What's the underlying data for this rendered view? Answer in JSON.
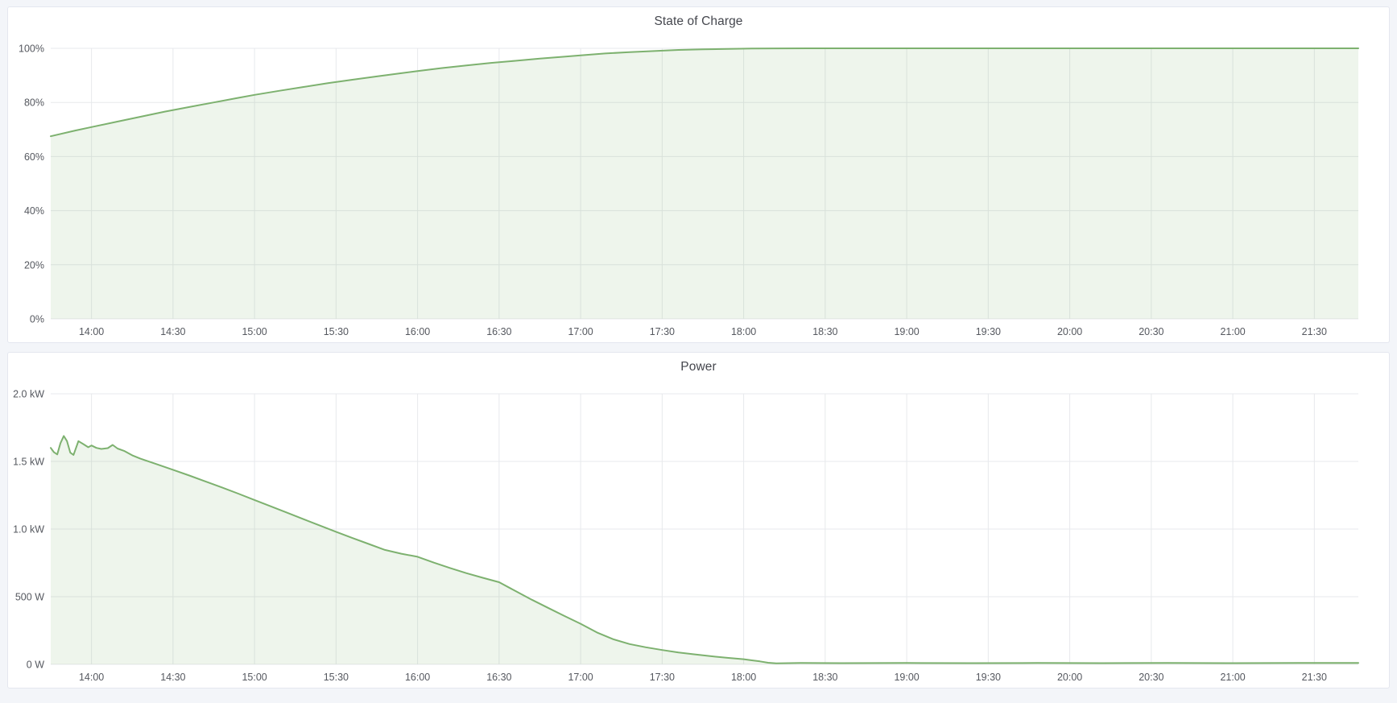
{
  "page": {
    "background_color": "#f3f5f9",
    "panel_background": "#ffffff",
    "panel_border_color": "#e4e7ef",
    "title_color": "#45474e",
    "axis_label_color": "#55585f",
    "gridline_color": "#e7e9ec"
  },
  "chart_data": [
    {
      "type": "area",
      "title": "State of Charge",
      "xlabel": "",
      "ylabel": "",
      "legend": "none",
      "grid": "on",
      "line_color": "#7db16f",
      "fill_color": "#7db16f",
      "fill_opacity": 0.13,
      "xlim": [
        13.75,
        21.77
      ],
      "ylim": [
        0,
        100
      ],
      "x_ticks": [
        {
          "t": 14.0,
          "label": "14:00"
        },
        {
          "t": 14.5,
          "label": "14:30"
        },
        {
          "t": 15.0,
          "label": "15:00"
        },
        {
          "t": 15.5,
          "label": "15:30"
        },
        {
          "t": 16.0,
          "label": "16:00"
        },
        {
          "t": 16.5,
          "label": "16:30"
        },
        {
          "t": 17.0,
          "label": "17:00"
        },
        {
          "t": 17.5,
          "label": "17:30"
        },
        {
          "t": 18.0,
          "label": "18:00"
        },
        {
          "t": 18.5,
          "label": "18:30"
        },
        {
          "t": 19.0,
          "label": "19:00"
        },
        {
          "t": 19.5,
          "label": "19:30"
        },
        {
          "t": 20.0,
          "label": "20:00"
        },
        {
          "t": 20.5,
          "label": "20:30"
        },
        {
          "t": 21.0,
          "label": "21:00"
        },
        {
          "t": 21.5,
          "label": "21:30"
        }
      ],
      "y_ticks": [
        {
          "v": 0,
          "label": "0%"
        },
        {
          "v": 20,
          "label": "20%"
        },
        {
          "v": 40,
          "label": "40%"
        },
        {
          "v": 60,
          "label": "60%"
        },
        {
          "v": 80,
          "label": "80%"
        },
        {
          "v": 100,
          "label": "100%"
        }
      ],
      "points": [
        [
          13.75,
          67.5
        ],
        [
          13.9,
          69.6
        ],
        [
          14.0,
          70.9
        ],
        [
          14.15,
          72.8
        ],
        [
          14.3,
          74.7
        ],
        [
          14.45,
          76.6
        ],
        [
          14.6,
          78.3
        ],
        [
          14.75,
          80.0
        ],
        [
          14.9,
          81.7
        ],
        [
          15.0,
          82.8
        ],
        [
          15.15,
          84.3
        ],
        [
          15.3,
          85.7
        ],
        [
          15.45,
          87.1
        ],
        [
          15.6,
          88.4
        ],
        [
          15.75,
          89.6
        ],
        [
          15.9,
          90.8
        ],
        [
          16.0,
          91.6
        ],
        [
          16.15,
          92.7
        ],
        [
          16.3,
          93.7
        ],
        [
          16.45,
          94.6
        ],
        [
          16.6,
          95.4
        ],
        [
          16.75,
          96.2
        ],
        [
          16.9,
          96.9
        ],
        [
          17.0,
          97.4
        ],
        [
          17.15,
          98.1
        ],
        [
          17.3,
          98.6
        ],
        [
          17.45,
          99.0
        ],
        [
          17.6,
          99.4
        ],
        [
          17.75,
          99.6
        ],
        [
          17.9,
          99.8
        ],
        [
          18.05,
          99.9
        ],
        [
          18.2,
          99.97
        ],
        [
          18.4,
          100
        ],
        [
          19.0,
          100
        ],
        [
          20.0,
          100
        ],
        [
          21.0,
          100
        ],
        [
          21.77,
          100
        ]
      ]
    },
    {
      "type": "area",
      "title": "Power",
      "xlabel": "",
      "ylabel": "",
      "legend": "none",
      "grid": "on",
      "line_color": "#7db16f",
      "fill_color": "#7db16f",
      "fill_opacity": 0.13,
      "xlim": [
        13.75,
        21.77
      ],
      "ylim": [
        0,
        2000
      ],
      "x_ticks": [
        {
          "t": 14.0,
          "label": "14:00"
        },
        {
          "t": 14.5,
          "label": "14:30"
        },
        {
          "t": 15.0,
          "label": "15:00"
        },
        {
          "t": 15.5,
          "label": "15:30"
        },
        {
          "t": 16.0,
          "label": "16:00"
        },
        {
          "t": 16.5,
          "label": "16:30"
        },
        {
          "t": 17.0,
          "label": "17:00"
        },
        {
          "t": 17.5,
          "label": "17:30"
        },
        {
          "t": 18.0,
          "label": "18:00"
        },
        {
          "t": 18.5,
          "label": "18:30"
        },
        {
          "t": 19.0,
          "label": "19:00"
        },
        {
          "t": 19.5,
          "label": "19:30"
        },
        {
          "t": 20.0,
          "label": "20:00"
        },
        {
          "t": 20.5,
          "label": "20:30"
        },
        {
          "t": 21.0,
          "label": "21:00"
        },
        {
          "t": 21.5,
          "label": "21:30"
        }
      ],
      "y_ticks": [
        {
          "v": 0,
          "label": "0 W"
        },
        {
          "v": 500,
          "label": "500 W"
        },
        {
          "v": 1000,
          "label": "1.0 kW"
        },
        {
          "v": 1500,
          "label": "1.5 kW"
        },
        {
          "v": 2000,
          "label": "2.0 kW"
        }
      ],
      "points": [
        [
          13.75,
          1600
        ],
        [
          13.77,
          1568
        ],
        [
          13.79,
          1552
        ],
        [
          13.81,
          1635
        ],
        [
          13.83,
          1688
        ],
        [
          13.85,
          1650
        ],
        [
          13.87,
          1565
        ],
        [
          13.89,
          1548
        ],
        [
          13.92,
          1650
        ],
        [
          13.95,
          1628
        ],
        [
          13.98,
          1605
        ],
        [
          14.0,
          1618
        ],
        [
          14.03,
          1600
        ],
        [
          14.06,
          1592
        ],
        [
          14.1,
          1598
        ],
        [
          14.13,
          1622
        ],
        [
          14.16,
          1595
        ],
        [
          14.2,
          1578
        ],
        [
          14.25,
          1545
        ],
        [
          14.3,
          1520
        ],
        [
          14.4,
          1480
        ],
        [
          14.5,
          1438
        ],
        [
          14.6,
          1396
        ],
        [
          14.7,
          1352
        ],
        [
          14.8,
          1308
        ],
        [
          14.9,
          1262
        ],
        [
          15.0,
          1215
        ],
        [
          15.1,
          1168
        ],
        [
          15.2,
          1121
        ],
        [
          15.3,
          1073
        ],
        [
          15.4,
          1026
        ],
        [
          15.5,
          980
        ],
        [
          15.6,
          934
        ],
        [
          15.7,
          890
        ],
        [
          15.8,
          846
        ],
        [
          15.9,
          818
        ],
        [
          16.0,
          795
        ],
        [
          16.1,
          752
        ],
        [
          16.2,
          712
        ],
        [
          16.3,
          674
        ],
        [
          16.4,
          640
        ],
        [
          16.5,
          607
        ],
        [
          16.6,
          542
        ],
        [
          16.7,
          478
        ],
        [
          16.8,
          418
        ],
        [
          16.9,
          358
        ],
        [
          17.0,
          300
        ],
        [
          17.1,
          236
        ],
        [
          17.2,
          186
        ],
        [
          17.3,
          150
        ],
        [
          17.4,
          126
        ],
        [
          17.5,
          106
        ],
        [
          17.6,
          88
        ],
        [
          17.7,
          74
        ],
        [
          17.8,
          60
        ],
        [
          17.9,
          48
        ],
        [
          18.0,
          38
        ],
        [
          18.05,
          30
        ],
        [
          18.1,
          22
        ],
        [
          18.15,
          12
        ],
        [
          18.2,
          8
        ],
        [
          18.35,
          10
        ],
        [
          18.6,
          9
        ],
        [
          19.0,
          10
        ],
        [
          19.4,
          9
        ],
        [
          19.8,
          10
        ],
        [
          20.2,
          9
        ],
        [
          20.6,
          10
        ],
        [
          21.0,
          9
        ],
        [
          21.4,
          10
        ],
        [
          21.77,
          10
        ]
      ]
    }
  ]
}
